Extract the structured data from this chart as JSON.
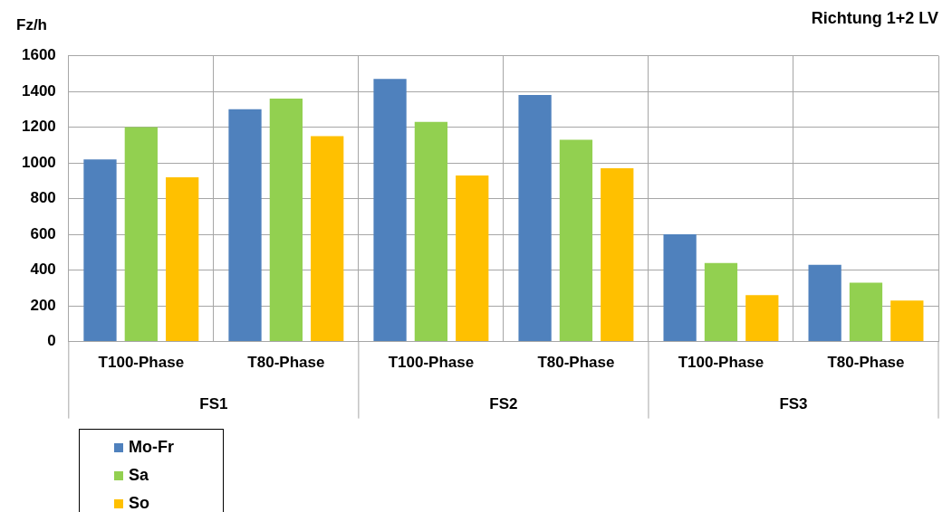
{
  "chart_data": {
    "type": "bar",
    "title": "Richtung 1+2 LV",
    "ylabel": "Fz/h",
    "categories": [
      "T100-Phase",
      "T80-Phase",
      "T100-Phase",
      "T80-Phase",
      "T100-Phase",
      "T80-Phase"
    ],
    "annotations": [
      "FS1",
      "FS2",
      "FS3"
    ],
    "series": [
      {
        "name": "Mo-Fr",
        "color": "#4f81bd",
        "values": [
          1020,
          1300,
          1470,
          1380,
          600,
          430
        ]
      },
      {
        "name": "Sa",
        "color": "#92d050",
        "values": [
          1200,
          1360,
          1230,
          1130,
          440,
          330
        ]
      },
      {
        "name": "So",
        "color": "#ffc000",
        "values": [
          920,
          1150,
          930,
          970,
          260,
          230
        ]
      }
    ],
    "ylim": [
      0,
      1600
    ],
    "yticks": [
      0,
      200,
      400,
      600,
      800,
      1000,
      1200,
      1400,
      1600
    ],
    "grid": true,
    "legend": "bottom left"
  }
}
